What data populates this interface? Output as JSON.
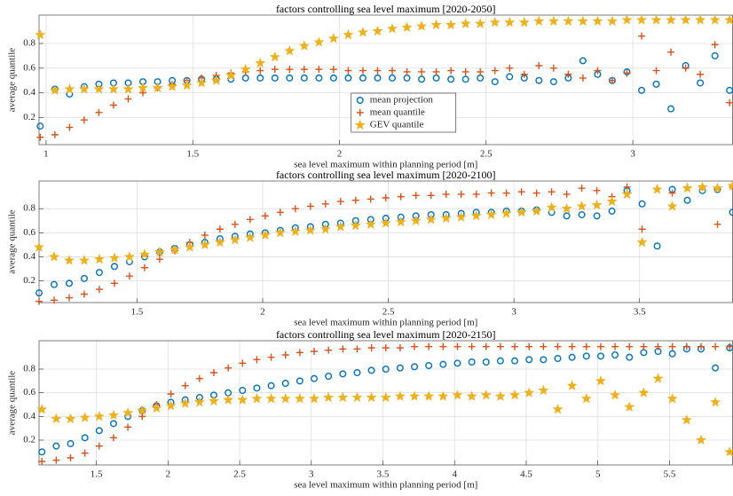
{
  "chart_data": [
    {
      "type": "scatter",
      "title": "factors controlling sea level maximum [2020-2050]",
      "xlabel": "sea level maximum within planning period [m]",
      "ylabel": "average quantile",
      "x": [
        0.98,
        1.03,
        1.08,
        1.13,
        1.18,
        1.23,
        1.28,
        1.33,
        1.38,
        1.43,
        1.48,
        1.53,
        1.58,
        1.63,
        1.68,
        1.73,
        1.78,
        1.83,
        1.88,
        1.93,
        1.98,
        2.03,
        2.08,
        2.13,
        2.18,
        2.23,
        2.28,
        2.33,
        2.38,
        2.43,
        2.48,
        2.53,
        2.58,
        2.63,
        2.68,
        2.73,
        2.78,
        2.83,
        2.88,
        2.93,
        2.98,
        3.03,
        3.08,
        3.13,
        3.18,
        3.23,
        3.28,
        3.33
      ],
      "series": [
        {
          "name": "mean projection",
          "color": "#0072BD",
          "marker": "circle",
          "values": [
            0.13,
            0.43,
            0.39,
            0.45,
            0.47,
            0.48,
            0.48,
            0.49,
            0.49,
            0.5,
            0.5,
            0.51,
            0.51,
            0.51,
            0.52,
            0.52,
            0.52,
            0.52,
            0.52,
            0.52,
            0.52,
            0.52,
            0.52,
            0.52,
            0.52,
            0.52,
            0.51,
            0.52,
            0.51,
            0.51,
            0.52,
            0.49,
            0.53,
            0.52,
            0.5,
            0.49,
            0.52,
            0.66,
            0.55,
            0.5,
            0.57,
            0.42,
            0.47,
            0.27,
            0.62,
            0.48,
            0.7,
            0.42
          ]
        },
        {
          "name": "mean quantile",
          "color": "#D95319",
          "marker": "plus",
          "values": [
            0.04,
            0.06,
            0.12,
            0.18,
            0.24,
            0.3,
            0.35,
            0.4,
            0.44,
            0.47,
            0.5,
            0.52,
            0.54,
            0.56,
            0.57,
            0.58,
            0.59,
            0.59,
            0.59,
            0.59,
            0.59,
            0.58,
            0.58,
            0.58,
            0.58,
            0.57,
            0.57,
            0.57,
            0.58,
            0.57,
            0.57,
            0.58,
            0.6,
            0.55,
            0.62,
            0.6,
            0.55,
            0.52,
            0.58,
            0.5,
            0.56,
            0.86,
            0.58,
            0.73,
            0.6,
            0.55,
            0.79,
            0.32
          ]
        },
        {
          "name": "GEV quantile",
          "color": "#EDB120",
          "marker": "star",
          "values": [
            0.87,
            0.42,
            0.43,
            0.43,
            0.43,
            0.43,
            0.43,
            0.44,
            0.44,
            0.45,
            0.46,
            0.48,
            0.5,
            0.54,
            0.59,
            0.64,
            0.69,
            0.74,
            0.78,
            0.81,
            0.84,
            0.87,
            0.89,
            0.9,
            0.92,
            0.93,
            0.94,
            0.95,
            0.95,
            0.96,
            0.96,
            0.97,
            0.97,
            0.97,
            0.98,
            0.98,
            0.98,
            0.98,
            0.98,
            0.98,
            0.99,
            0.99,
            0.99,
            0.99,
            0.99,
            0.99,
            0.99,
            0.99
          ]
        }
      ],
      "xlim": [
        0.976,
        3.34
      ],
      "ylim": [
        -0.02,
        1.03
      ],
      "xticks": [
        1,
        1.5,
        2,
        2.5,
        3
      ],
      "yticks": [
        0.2,
        0.4,
        0.6,
        0.8
      ],
      "grid": true,
      "legend": "lower center"
    },
    {
      "type": "scatter",
      "title": "factors controlling sea level maximum [2020-2100]",
      "xlabel": "sea level maximum within planning period [m]",
      "ylabel": "average quantile",
      "x": [
        1.11,
        1.17,
        1.23,
        1.29,
        1.35,
        1.41,
        1.47,
        1.53,
        1.59,
        1.65,
        1.71,
        1.77,
        1.83,
        1.89,
        1.95,
        2.01,
        2.07,
        2.13,
        2.19,
        2.25,
        2.31,
        2.37,
        2.43,
        2.49,
        2.55,
        2.61,
        2.67,
        2.73,
        2.79,
        2.85,
        2.91,
        2.97,
        3.03,
        3.09,
        3.15,
        3.21,
        3.27,
        3.33,
        3.39,
        3.45,
        3.51,
        3.57,
        3.63,
        3.69,
        3.75,
        3.81,
        3.87
      ],
      "series": [
        {
          "name": "mean projection",
          "color": "#0072BD",
          "marker": "circle",
          "values": [
            0.1,
            0.17,
            0.18,
            0.22,
            0.27,
            0.32,
            0.36,
            0.4,
            0.44,
            0.47,
            0.5,
            0.52,
            0.55,
            0.57,
            0.59,
            0.6,
            0.62,
            0.64,
            0.65,
            0.67,
            0.68,
            0.7,
            0.71,
            0.72,
            0.73,
            0.74,
            0.75,
            0.75,
            0.76,
            0.77,
            0.77,
            0.78,
            0.78,
            0.79,
            0.77,
            0.74,
            0.75,
            0.74,
            0.78,
            0.95,
            0.84,
            0.49,
            0.96,
            0.87,
            0.95,
            0.96,
            0.77
          ]
        },
        {
          "name": "mean quantile",
          "color": "#D95319",
          "marker": "plus",
          "values": [
            0.03,
            0.04,
            0.06,
            0.09,
            0.13,
            0.18,
            0.24,
            0.31,
            0.38,
            0.45,
            0.52,
            0.58,
            0.63,
            0.67,
            0.71,
            0.74,
            0.77,
            0.8,
            0.82,
            0.84,
            0.86,
            0.87,
            0.88,
            0.89,
            0.9,
            0.91,
            0.91,
            0.92,
            0.92,
            0.92,
            0.93,
            0.93,
            0.94,
            0.93,
            0.94,
            0.92,
            0.97,
            0.95,
            0.9,
            0.98,
            0.63,
            0.97,
            0.93,
            0.98,
            0.98,
            0.67,
            0.98
          ]
        },
        {
          "name": "GEV quantile",
          "color": "#EDB120",
          "marker": "star",
          "values": [
            0.48,
            0.4,
            0.37,
            0.37,
            0.38,
            0.39,
            0.4,
            0.42,
            0.44,
            0.46,
            0.48,
            0.5,
            0.52,
            0.54,
            0.56,
            0.58,
            0.6,
            0.61,
            0.62,
            0.63,
            0.65,
            0.66,
            0.67,
            0.68,
            0.69,
            0.7,
            0.71,
            0.72,
            0.73,
            0.74,
            0.75,
            0.76,
            0.77,
            0.78,
            0.81,
            0.8,
            0.82,
            0.83,
            0.86,
            0.92,
            0.52,
            0.96,
            0.82,
            0.97,
            0.98,
            0.97,
            0.99
          ]
        }
      ],
      "xlim": [
        1.11,
        3.87
      ],
      "ylim": [
        0.02,
        1.03
      ],
      "xticks": [
        1.5,
        2,
        2.5,
        3,
        3.5
      ],
      "yticks": [
        0.2,
        0.4,
        0.6,
        0.8
      ],
      "grid": true
    },
    {
      "type": "scatter",
      "title": "factors controlling sea level maximum [2020-2150]",
      "xlabel": "sea level maximum within planning period [m]",
      "ylabel": "average quantile",
      "x": [
        1.12,
        1.22,
        1.32,
        1.42,
        1.52,
        1.62,
        1.72,
        1.82,
        1.92,
        2.02,
        2.12,
        2.22,
        2.32,
        2.42,
        2.52,
        2.62,
        2.72,
        2.82,
        2.92,
        3.02,
        3.12,
        3.22,
        3.32,
        3.42,
        3.52,
        3.62,
        3.72,
        3.82,
        3.92,
        4.02,
        4.12,
        4.22,
        4.32,
        4.42,
        4.52,
        4.62,
        4.72,
        4.82,
        4.92,
        5.02,
        5.12,
        5.22,
        5.32,
        5.42,
        5.52,
        5.62,
        5.72,
        5.82,
        5.92
      ],
      "series": [
        {
          "name": "mean projection",
          "color": "#0072BD",
          "marker": "circle",
          "values": [
            0.1,
            0.15,
            0.17,
            0.22,
            0.28,
            0.34,
            0.4,
            0.45,
            0.49,
            0.52,
            0.54,
            0.56,
            0.58,
            0.6,
            0.62,
            0.64,
            0.66,
            0.68,
            0.7,
            0.72,
            0.74,
            0.76,
            0.77,
            0.79,
            0.8,
            0.81,
            0.82,
            0.83,
            0.84,
            0.85,
            0.86,
            0.86,
            0.87,
            0.87,
            0.88,
            0.88,
            0.89,
            0.9,
            0.91,
            0.91,
            0.92,
            0.9,
            0.94,
            0.95,
            0.93,
            0.97,
            0.97,
            0.81,
            0.98
          ]
        },
        {
          "name": "mean quantile",
          "color": "#D95319",
          "marker": "plus",
          "values": [
            0.02,
            0.03,
            0.05,
            0.09,
            0.15,
            0.22,
            0.31,
            0.4,
            0.5,
            0.59,
            0.66,
            0.72,
            0.77,
            0.81,
            0.85,
            0.88,
            0.9,
            0.92,
            0.94,
            0.95,
            0.96,
            0.97,
            0.97,
            0.98,
            0.98,
            0.98,
            0.99,
            0.99,
            0.99,
            0.99,
            0.99,
            0.99,
            0.99,
            0.99,
            0.99,
            0.99,
            0.99,
            0.99,
            0.99,
            0.99,
            0.99,
            0.99,
            0.99,
            0.99,
            0.99,
            0.99,
            0.99,
            0.99,
            0.99
          ]
        },
        {
          "name": "GEV quantile",
          "color": "#EDB120",
          "marker": "star",
          "values": [
            0.46,
            0.38,
            0.38,
            0.39,
            0.4,
            0.41,
            0.43,
            0.45,
            0.47,
            0.49,
            0.51,
            0.52,
            0.53,
            0.54,
            0.54,
            0.55,
            0.55,
            0.55,
            0.55,
            0.55,
            0.56,
            0.56,
            0.56,
            0.56,
            0.56,
            0.57,
            0.57,
            0.57,
            0.57,
            0.58,
            0.57,
            0.58,
            0.57,
            0.58,
            0.6,
            0.62,
            0.46,
            0.66,
            0.55,
            0.7,
            0.58,
            0.48,
            0.6,
            0.72,
            0.55,
            0.37,
            0.2,
            0.52,
            0.1
          ]
        }
      ],
      "xlim": [
        1.1,
        5.94
      ],
      "ylim": [
        -0.01,
        1.04
      ],
      "xticks": [
        1.5,
        2,
        2.5,
        3,
        3.5,
        4,
        4.5,
        5,
        5.5
      ],
      "yticks": [
        0.2,
        0.4,
        0.6,
        0.8
      ],
      "grid": true
    }
  ]
}
